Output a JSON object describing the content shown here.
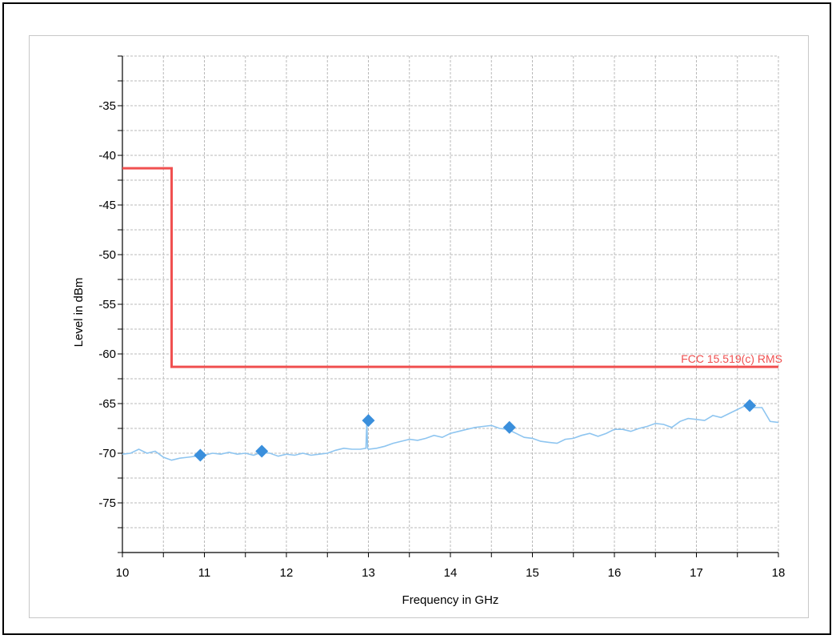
{
  "chart_data": {
    "type": "line",
    "title": "",
    "xlabel": "Frequency in GHz",
    "ylabel": "Level in dBm",
    "xlim": [
      10,
      18
    ],
    "ylim": [
      -80,
      -30
    ],
    "x_ticks": [
      10,
      11,
      12,
      13,
      14,
      15,
      16,
      17,
      18
    ],
    "y_ticks": [
      -75,
      -70,
      -65,
      -60,
      -55,
      -50,
      -45,
      -40,
      -35
    ],
    "grid": true,
    "colors": {
      "limit": "#f05050",
      "measurement": "#8ec5f0",
      "markers": "#3a8fdc",
      "grid": "#b9b9b9"
    },
    "series": [
      {
        "name": "FCC 15.519(c) RMS",
        "kind": "limit",
        "x": [
          10,
          10.6,
          10.6,
          18
        ],
        "y": [
          -41.3,
          -41.3,
          -61.3,
          -61.3
        ]
      },
      {
        "kind": "measurement",
        "x": [
          10.0,
          10.1,
          10.2,
          10.3,
          10.4,
          10.5,
          10.6,
          10.7,
          10.8,
          10.9,
          11.0,
          11.1,
          11.2,
          11.3,
          11.4,
          11.5,
          11.6,
          11.7,
          11.8,
          11.9,
          12.0,
          12.1,
          12.2,
          12.3,
          12.4,
          12.5,
          12.6,
          12.7,
          12.8,
          12.9,
          12.97,
          12.98,
          12.99,
          13.0,
          13.1,
          13.2,
          13.3,
          13.4,
          13.5,
          13.6,
          13.7,
          13.8,
          13.9,
          14.0,
          14.1,
          14.2,
          14.3,
          14.4,
          14.5,
          14.6,
          14.7,
          14.8,
          14.9,
          15.0,
          15.1,
          15.2,
          15.3,
          15.4,
          15.5,
          15.6,
          15.7,
          15.8,
          15.9,
          16.0,
          16.1,
          16.2,
          16.3,
          16.4,
          16.5,
          16.6,
          16.7,
          16.8,
          16.9,
          17.0,
          17.1,
          17.2,
          17.3,
          17.4,
          17.5,
          17.6,
          17.7,
          17.8,
          17.9,
          18.0
        ],
        "y": [
          -70.1,
          -70.0,
          -69.6,
          -70.0,
          -69.8,
          -70.4,
          -70.7,
          -70.5,
          -70.4,
          -70.3,
          -70.2,
          -70.0,
          -70.1,
          -69.9,
          -70.1,
          -70.0,
          -70.2,
          -69.9,
          -70.0,
          -70.3,
          -70.1,
          -70.2,
          -70.0,
          -70.2,
          -70.1,
          -70.0,
          -69.7,
          -69.5,
          -69.6,
          -69.6,
          -69.5,
          -66.8,
          -69.5,
          -69.6,
          -69.5,
          -69.3,
          -69.0,
          -68.8,
          -68.6,
          -68.7,
          -68.5,
          -68.2,
          -68.4,
          -68.0,
          -67.8,
          -67.6,
          -67.4,
          -67.3,
          -67.2,
          -67.5,
          -67.6,
          -68.0,
          -68.4,
          -68.5,
          -68.8,
          -68.9,
          -69.0,
          -68.6,
          -68.5,
          -68.2,
          -68.0,
          -68.3,
          -68.0,
          -67.6,
          -67.6,
          -67.8,
          -67.5,
          -67.3,
          -67.0,
          -67.1,
          -67.4,
          -66.8,
          -66.5,
          -66.6,
          -66.7,
          -66.2,
          -66.4,
          -66.0,
          -65.6,
          -65.2,
          -65.4,
          -65.4,
          -66.8,
          -66.9
        ]
      }
    ],
    "markers": {
      "x": [
        10.95,
        11.7,
        13.0,
        14.72,
        17.65
      ],
      "y": [
        -70.2,
        -69.8,
        -66.7,
        -67.4,
        -65.2
      ]
    }
  }
}
